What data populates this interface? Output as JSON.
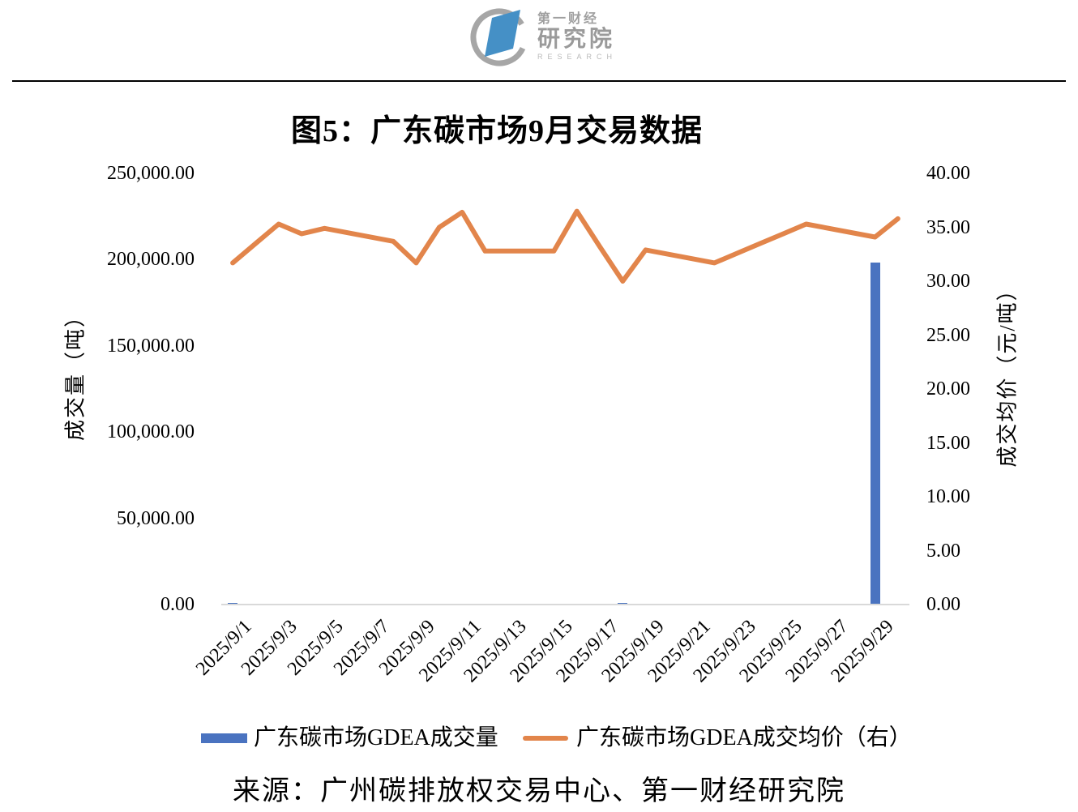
{
  "brand": {
    "line1": "第一财经",
    "line2": "研究院",
    "line3": "RESEARCH"
  },
  "title": "图5：广东碳市场9月交易数据",
  "source": "来源：广州碳排放权交易中心、第一财经研究院",
  "colors": {
    "bar": "#4a73c0",
    "line": "#e2854b",
    "axis_line": "#d9d9d9",
    "logo_gray": "#9f9f9f",
    "logo_blue": "#4590c6",
    "text": "#000000"
  },
  "chart_data": {
    "type": "combo",
    "title": "图5：广东碳市场9月交易数据",
    "n_slots": 30,
    "grid": false,
    "legend_position": "bottom",
    "x": [
      "2025/9/1",
      "2025/9/2",
      "2025/9/3",
      "2025/9/4",
      "2025/9/5",
      "2025/9/8",
      "2025/9/9",
      "2025/9/10",
      "2025/9/11",
      "2025/9/12",
      "2025/9/15",
      "2025/9/16",
      "2025/9/17",
      "2025/9/18",
      "2025/9/19",
      "2025/9/22",
      "2025/9/23",
      "2025/9/24",
      "2025/9/25",
      "2025/9/26",
      "2025/9/29",
      "2025/9/30"
    ],
    "day_of_month": [
      1,
      2,
      3,
      4,
      5,
      8,
      9,
      10,
      11,
      12,
      15,
      16,
      17,
      18,
      19,
      22,
      23,
      24,
      25,
      26,
      29,
      30
    ],
    "x_tick_labels": [
      "2025/9/1",
      "2025/9/3",
      "2025/9/5",
      "2025/9/7",
      "2025/9/9",
      "2025/9/11",
      "2025/9/13",
      "2025/9/15",
      "2025/9/17",
      "2025/9/19",
      "2025/9/21",
      "2025/9/23",
      "2025/9/25",
      "2025/9/27",
      "2025/9/29"
    ],
    "x_tick_days": [
      1,
      3,
      5,
      7,
      9,
      11,
      13,
      15,
      17,
      19,
      21,
      23,
      25,
      27,
      29
    ],
    "left_axis": {
      "title": "成交量（吨）",
      "ticks": [
        "250,000.00",
        "200,000.00",
        "150,000.00",
        "100,000.00",
        "50,000.00",
        "0.00"
      ],
      "range": [
        0,
        250000
      ]
    },
    "right_axis": {
      "title": "成交均价（元/吨）",
      "ticks": [
        "40.00",
        "35.00",
        "30.00",
        "25.00",
        "20.00",
        "15.00",
        "10.00",
        "5.00",
        "0.00"
      ],
      "range": [
        0,
        40
      ]
    },
    "series": [
      {
        "name": "广东碳市场GDEA成交量",
        "type": "bar",
        "axis": "left",
        "color": "#4a73c0",
        "values": [
          1100,
          0,
          0,
          0,
          0,
          0,
          0,
          0,
          0,
          0,
          0,
          0,
          0,
          900,
          0,
          0,
          0,
          0,
          250,
          0,
          198500,
          0
        ]
      },
      {
        "name": "广东碳市场GDEA成交均价（右）",
        "type": "line",
        "axis": "right",
        "color": "#e2854b",
        "values": [
          31.7,
          33.5,
          35.3,
          34.4,
          34.9,
          33.7,
          31.7,
          35.0,
          36.4,
          32.8,
          32.8,
          36.5,
          33.2,
          30.0,
          32.9,
          31.7,
          32.6,
          33.5,
          34.4,
          35.3,
          34.1,
          35.8
        ]
      }
    ]
  }
}
